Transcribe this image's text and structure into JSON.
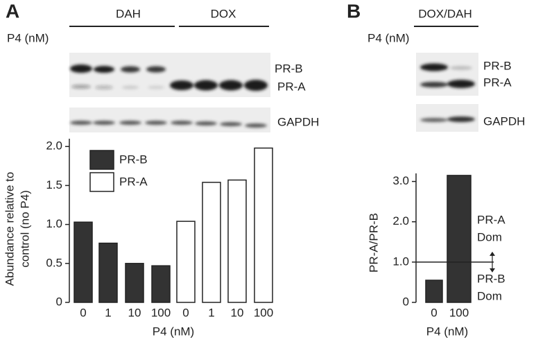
{
  "panel_a": {
    "label": "A",
    "groups": [
      "DAH",
      "DOX"
    ],
    "lane_title": "P4 (nM)",
    "lanes": [
      "0",
      "1",
      "10",
      "100",
      "0",
      "1",
      "10",
      "100"
    ],
    "bands": [
      "PR-B",
      "PR-A",
      "GAPDH"
    ]
  },
  "panel_b": {
    "label": "B",
    "groups": [
      "DOX/DAH"
    ],
    "lane_title": "P4 (nM)",
    "lanes": [
      "0",
      "100"
    ],
    "bands": [
      "PR-B",
      "PR-A",
      "GAPDH"
    ]
  },
  "chart_data": [
    {
      "type": "bar",
      "ylabel": [
        "Abundance relative to",
        "control (no P4)"
      ],
      "xlabel": "P4 (nM)",
      "categories": [
        "0",
        "1",
        "10",
        "100",
        "0",
        "1",
        "10",
        "100"
      ],
      "series": [
        {
          "name": "PR-B",
          "color": "#333333",
          "values": [
            1.03,
            0.76,
            0.5,
            0.47,
            null,
            null,
            null,
            null
          ]
        },
        {
          "name": "PR-A",
          "color": "#ffffff",
          "values": [
            null,
            null,
            null,
            null,
            1.04,
            1.54,
            1.57,
            1.98
          ]
        }
      ],
      "ylim": [
        0,
        2.1
      ],
      "yticks": [
        0,
        0.5,
        {
          "value": 1,
          "label": "1.0"
        },
        1.5,
        {
          "value": 2,
          "label": "2.0"
        }
      ],
      "legend": "upper-left"
    },
    {
      "type": "bar",
      "ylabel": [
        "PR-A/PR-B"
      ],
      "xlabel": "P4 (nM)",
      "categories": [
        "0",
        "100"
      ],
      "values": [
        0.55,
        3.15
      ],
      "color": "#333333",
      "ylim": [
        0,
        3.2
      ],
      "yticks": [
        0,
        {
          "value": 1,
          "label": "1.0"
        },
        {
          "value": 2,
          "label": "2.0"
        },
        {
          "value": 3,
          "label": "3.0"
        }
      ],
      "reference_line": 1,
      "annotations": [
        [
          "PR-A",
          "Dom"
        ],
        [
          "PR-B",
          "Dom"
        ]
      ]
    }
  ]
}
